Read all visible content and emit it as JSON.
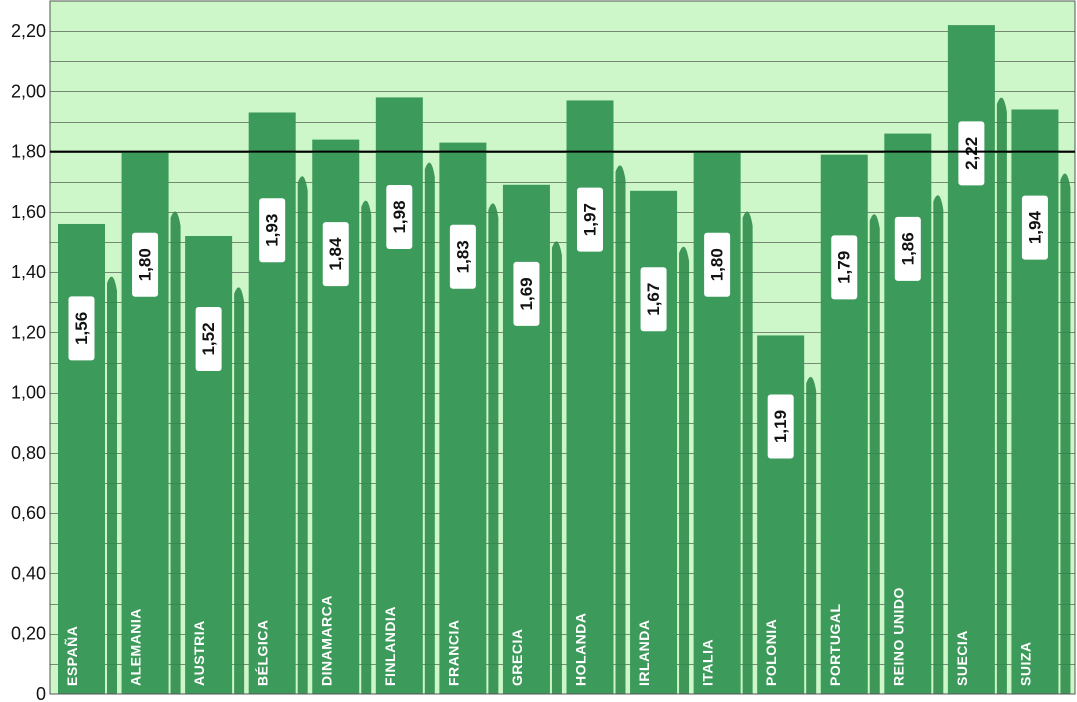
{
  "chart_data": {
    "type": "bar",
    "title": "",
    "xlabel": "",
    "ylabel": "",
    "categories": [
      "ESPAÑA",
      "ALEMANIA",
      "AUSTRIA",
      "BÉLGICA",
      "DINAMARCA",
      "FINLANDIA",
      "FRANCIA",
      "GRECIA",
      "HOLANDA",
      "IRLANDA",
      "ITALIA",
      "POLONIA",
      "PORTUGAL",
      "REINO UNIDO",
      "SUECIA",
      "SUIZA"
    ],
    "values": [
      1.56,
      1.8,
      1.52,
      1.93,
      1.84,
      1.98,
      1.83,
      1.69,
      1.97,
      1.67,
      1.8,
      1.19,
      1.79,
      1.86,
      2.22,
      1.94
    ],
    "value_labels": [
      "1,56",
      "1,80",
      "1,52",
      "1,93",
      "1,84",
      "1,98",
      "1,83",
      "1,69",
      "1,97",
      "1,67",
      "1,80",
      "1,19",
      "1,79",
      "1,86",
      "2,22",
      "1,94"
    ],
    "ylim": [
      0,
      2.3
    ],
    "yticks": [
      0,
      0.2,
      0.4,
      0.6,
      0.8,
      1.0,
      1.2,
      1.4,
      1.6,
      1.8,
      2.0,
      2.2
    ],
    "ytick_labels": [
      "0",
      "0,20",
      "0,40",
      "0,60",
      "0,80",
      "1,00",
      "1,20",
      "1,40",
      "1,60",
      "1,80",
      "2,00",
      "2,20"
    ],
    "reference_line": 1.8,
    "grid": true,
    "colors": {
      "plot_background": "#cdf7c9",
      "bar": "#3c9a5a",
      "bar_shadow": "#2f8b4a",
      "grid": "#333333",
      "reference_line": "#000000",
      "label_box": "#ffffff"
    }
  }
}
